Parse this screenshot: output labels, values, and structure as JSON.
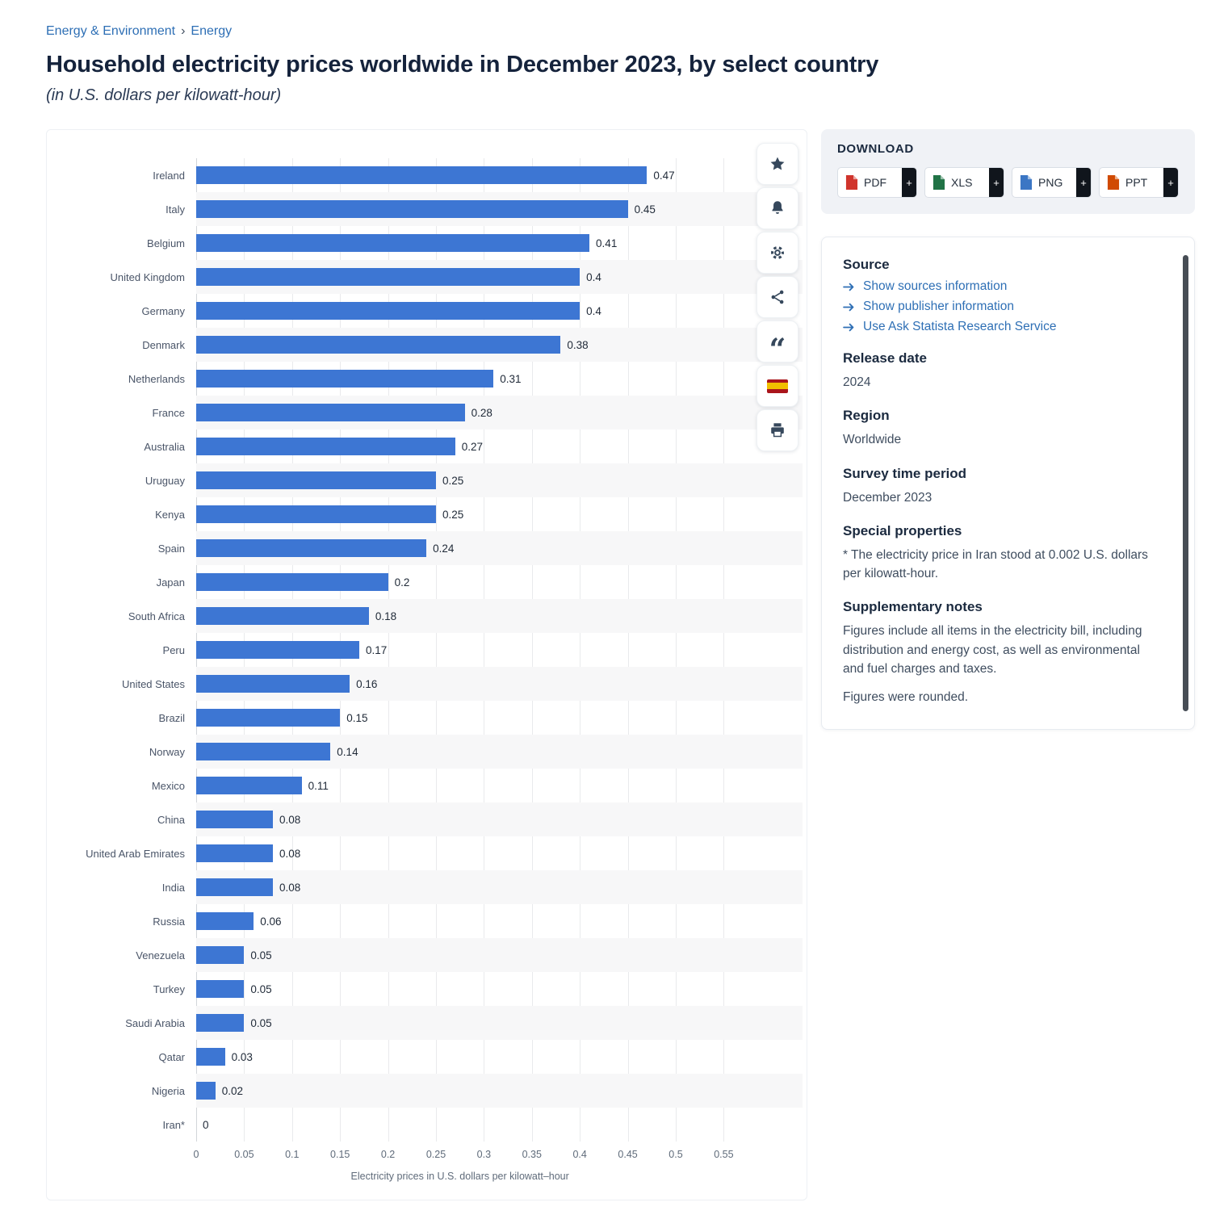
{
  "colors": {
    "bar": "#3D76D3",
    "link": "#2E6FB5",
    "accent_dark": "#10151C",
    "heading": "#15233C"
  },
  "breadcrumb": {
    "category": "Energy & Environment",
    "separator": "›",
    "subcategory": "Energy"
  },
  "title": "Household electricity prices worldwide in December 2023, by select country",
  "subtitle": "(in U.S. dollars per kilowatt-hour)",
  "chart_data": {
    "type": "bar",
    "orientation": "horizontal",
    "title": "Household electricity prices worldwide in December 2023, by select country",
    "categories": [
      "Ireland",
      "Italy",
      "Belgium",
      "United Kingdom",
      "Germany",
      "Denmark",
      "Netherlands",
      "France",
      "Australia",
      "Uruguay",
      "Kenya",
      "Spain",
      "Japan",
      "South Africa",
      "Peru",
      "United States",
      "Brazil",
      "Norway",
      "Mexico",
      "China",
      "United Arab Emirates",
      "India",
      "Russia",
      "Venezuela",
      "Turkey",
      "Saudi Arabia",
      "Qatar",
      "Nigeria",
      "Iran*"
    ],
    "values": [
      0.47,
      0.45,
      0.41,
      0.4,
      0.4,
      0.38,
      0.31,
      0.28,
      0.27,
      0.25,
      0.25,
      0.24,
      0.2,
      0.18,
      0.17,
      0.16,
      0.15,
      0.14,
      0.11,
      0.08,
      0.08,
      0.08,
      0.06,
      0.05,
      0.05,
      0.05,
      0.03,
      0.02,
      0
    ],
    "xlabel": "Electricity prices in U.S. dollars per kilowatt–hour",
    "xlim": [
      0,
      0.55
    ],
    "xticks": [
      0,
      0.05,
      0.1,
      0.15,
      0.2,
      0.25,
      0.3,
      0.35,
      0.4,
      0.45,
      0.5,
      0.55
    ],
    "grid": true,
    "zebra_rows": true,
    "legend": false,
    "bar_color": "#3D76D3"
  },
  "toolbar": {
    "buttons": [
      {
        "id": "star",
        "name": "favorite"
      },
      {
        "id": "bell",
        "name": "notifications"
      },
      {
        "id": "gear",
        "name": "settings"
      },
      {
        "id": "share",
        "name": "share"
      },
      {
        "id": "quote",
        "name": "citation"
      },
      {
        "id": "flag-es",
        "name": "language-spanish"
      },
      {
        "id": "print",
        "name": "print"
      }
    ]
  },
  "download": {
    "heading": "DOWNLOAD",
    "plus_label": "+",
    "buttons": [
      {
        "label": "PDF",
        "color": "#D0342C"
      },
      {
        "label": "XLS",
        "color": "#217346"
      },
      {
        "label": "PNG",
        "color": "#3B76C4"
      },
      {
        "label": "PPT",
        "color": "#D04A02"
      }
    ]
  },
  "info": {
    "source": {
      "heading": "Source",
      "links": [
        "Show sources information",
        "Show publisher information",
        "Use Ask Statista Research Service"
      ]
    },
    "release_date": {
      "heading": "Release date",
      "value": "2024"
    },
    "region": {
      "heading": "Region",
      "value": "Worldwide"
    },
    "survey_period": {
      "heading": "Survey time period",
      "value": "December 2023"
    },
    "special_properties": {
      "heading": "Special properties",
      "text": "* The electricity price in Iran stood at 0.002 U.S. dollars per kilowatt-hour."
    },
    "supplementary_notes": {
      "heading": "Supplementary notes",
      "text1": "Figures include all items in the electricity bill, including distribution and energy cost, as well as environmental and fuel charges and taxes.",
      "text2": "Figures were rounded."
    }
  }
}
